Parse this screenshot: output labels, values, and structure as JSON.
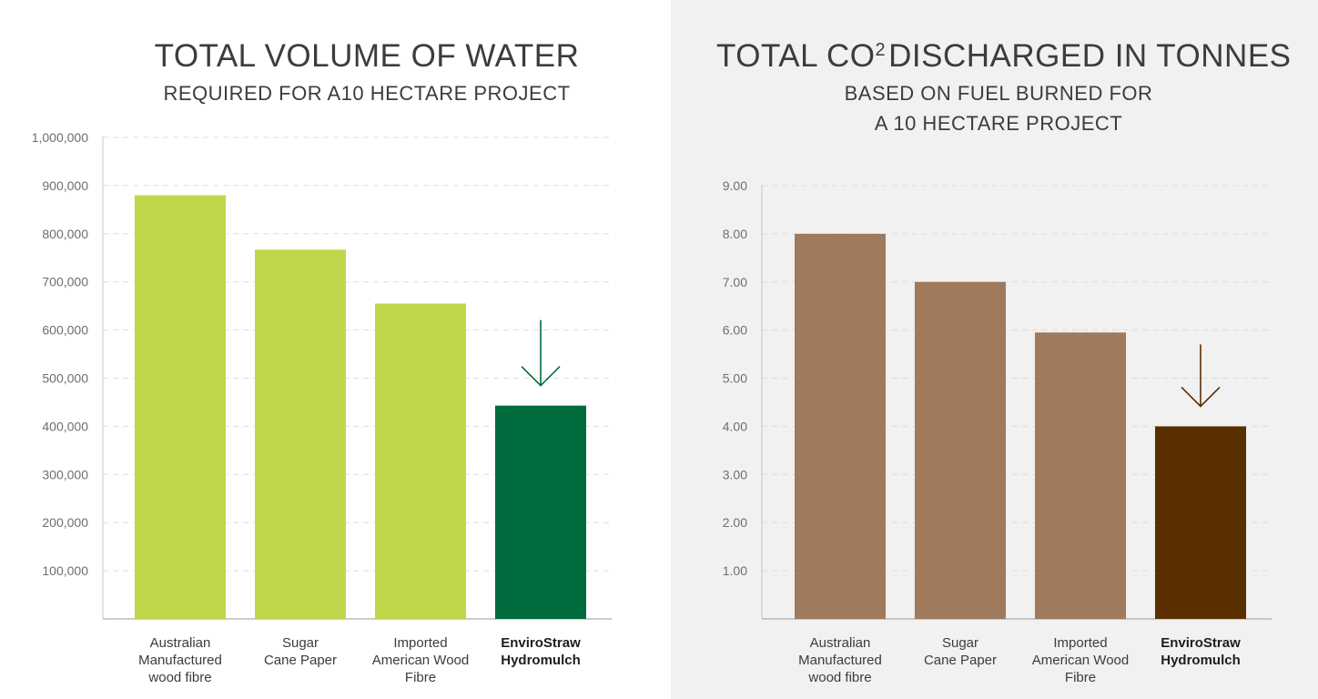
{
  "chart_data": [
    {
      "type": "bar",
      "title": "TOTAL VOLUME OF WATER",
      "subtitle": "REQUIRED FOR A10 HECTARE PROJECT",
      "xlabel": "",
      "ylabel": "",
      "ylim": [
        0,
        1000000
      ],
      "yticks": [
        "1,000,000",
        "900,000",
        "800,000",
        "700,000",
        "600,000",
        "500,000",
        "400,000",
        "300,000",
        "200,000",
        "100,000"
      ],
      "ytick_values": [
        1000000,
        900000,
        800000,
        700000,
        600000,
        500000,
        400000,
        300000,
        200000,
        100000
      ],
      "categories": [
        [
          "Australian",
          "Manufactured",
          "wood fibre"
        ],
        [
          "Sugar",
          "Cane Paper"
        ],
        [
          "Imported",
          "American Wood",
          "Fibre"
        ],
        [
          "EnviroStraw",
          "Hydromulch"
        ]
      ],
      "values": [
        880000,
        767000,
        655000,
        443000
      ],
      "highlight_index": 3,
      "highlight_arrow": true,
      "grid": "horizontal dashed",
      "colors": {
        "bar": "#bfd74a",
        "highlight": "#006b3c",
        "arrow": "#006b3c"
      }
    },
    {
      "type": "bar",
      "title": "TOTAL CO² DISCHARGED IN TONNES",
      "subtitle": "BASED ON FUEL BURNED FOR A 10 HECTARE PROJECT",
      "xlabel": "",
      "ylabel": "",
      "ylim": [
        0,
        9
      ],
      "yticks": [
        "9.00",
        "8.00",
        "7.00",
        "6.00",
        "5.00",
        "4.00",
        "3.00",
        "2.00",
        "1.00"
      ],
      "ytick_values": [
        9,
        8,
        7,
        6,
        5,
        4,
        3,
        2,
        1
      ],
      "categories": [
        [
          "Australian",
          "Manufactured",
          "wood fibre"
        ],
        [
          "Sugar",
          "Cane Paper"
        ],
        [
          "Imported",
          "American Wood",
          "Fibre"
        ],
        [
          "EnviroStraw",
          "Hydromulch"
        ]
      ],
      "values": [
        8.0,
        7.0,
        5.95,
        4.0
      ],
      "highlight_index": 3,
      "highlight_arrow": true,
      "grid": "horizontal dashed",
      "colors": {
        "bar": "#9f7a5c",
        "highlight": "#5a2f00",
        "arrow": "#5a2f00"
      }
    }
  ],
  "panels": {
    "left": {
      "title": "TOTAL VOLUME OF WATER",
      "subtitle": "REQUIRED FOR A10 HECTARE PROJECT"
    },
    "right": {
      "title_main": "TOTAL CO",
      "title_sup": "2",
      "title_rest": "DISCHARGED IN TONNES",
      "subtitle_line1": "BASED ON FUEL BURNED FOR",
      "subtitle_line2": "A 10 HECTARE PROJECT"
    }
  }
}
